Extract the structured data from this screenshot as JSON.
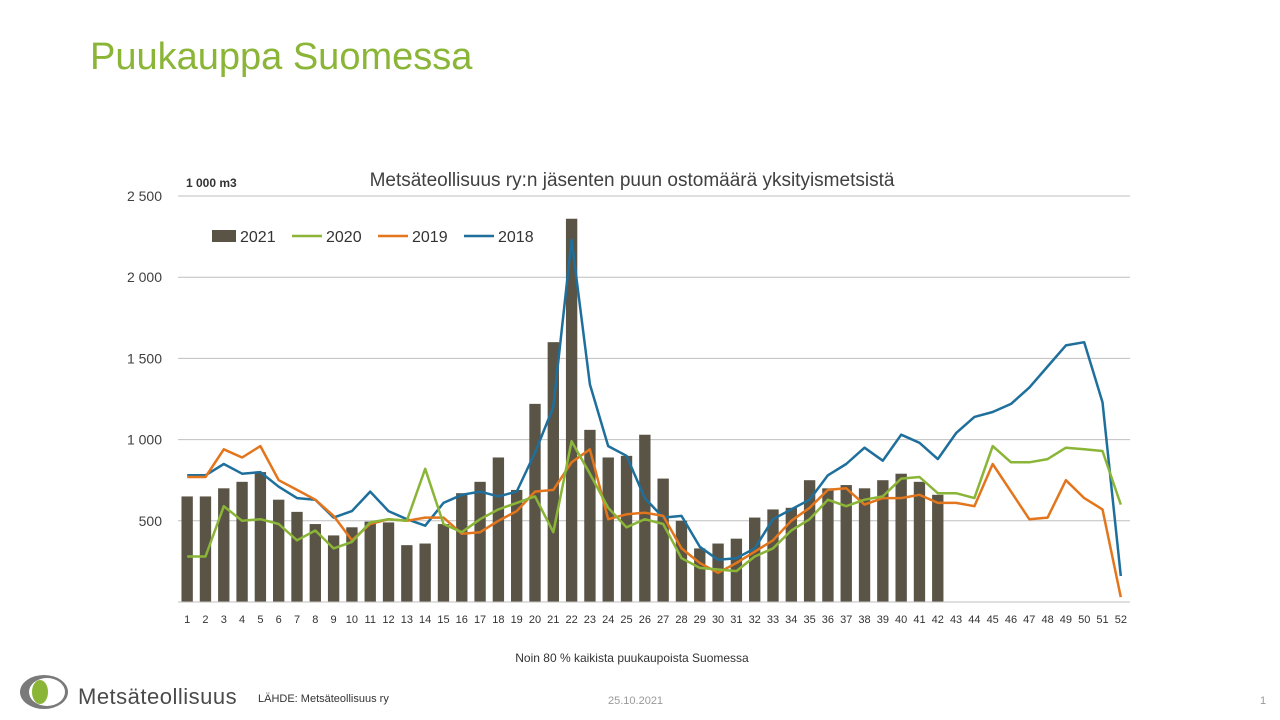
{
  "slide": {
    "title": "Puukauppa Suomessa",
    "source": "LÄHDE:  Metsäteollisuus ry",
    "date": "25.10.2021",
    "page_number": "1",
    "logo_text": "Metsäteollisuus"
  },
  "chart_data": {
    "type": "bar",
    "title": "Metsäteollisuus ry:n jäsenten puun ostomäärä yksityismetsistä",
    "unit_label": "1 000 m3",
    "xlabel": "Noin 80 % kaikista puukaupoista Suomessa",
    "ylim": [
      0,
      2500
    ],
    "yticks": [
      500,
      1000,
      1500,
      2000,
      2500
    ],
    "ytick_labels": [
      "500",
      "1 000",
      "1 500",
      "2 000",
      "2 500"
    ],
    "grid": true,
    "legend_position": "top-left",
    "categories": [
      "1",
      "2",
      "3",
      "4",
      "5",
      "6",
      "7",
      "8",
      "9",
      "10",
      "11",
      "12",
      "13",
      "14",
      "15",
      "16",
      "17",
      "18",
      "19",
      "20",
      "21",
      "22",
      "23",
      "24",
      "25",
      "26",
      "27",
      "28",
      "29",
      "30",
      "31",
      "32",
      "33",
      "34",
      "35",
      "36",
      "37",
      "38",
      "39",
      "40",
      "41",
      "42",
      "43",
      "44",
      "45",
      "46",
      "47",
      "48",
      "49",
      "50",
      "51",
      "52"
    ],
    "series": [
      {
        "name": "2021",
        "type": "bar",
        "color": "#595445",
        "values": [
          650,
          650,
          700,
          740,
          800,
          630,
          555,
          480,
          410,
          460,
          495,
          490,
          350,
          360,
          480,
          670,
          740,
          890,
          690,
          1220,
          1600,
          2360,
          1060,
          890,
          900,
          1030,
          760,
          500,
          330,
          360,
          390,
          520,
          570,
          580,
          750,
          700,
          720,
          700,
          750,
          790,
          740,
          660,
          null,
          null,
          null,
          null,
          null,
          null,
          null,
          null,
          null,
          null
        ]
      },
      {
        "name": "2020",
        "type": "line",
        "color": "#8ab537",
        "values": [
          280,
          280,
          590,
          500,
          510,
          480,
          380,
          440,
          330,
          370,
          490,
          510,
          500,
          820,
          480,
          430,
          510,
          570,
          610,
          650,
          430,
          990,
          790,
          580,
          460,
          510,
          480,
          270,
          210,
          200,
          190,
          280,
          330,
          440,
          510,
          630,
          590,
          630,
          650,
          760,
          770,
          670,
          670,
          640,
          960,
          860,
          860,
          880,
          950,
          940,
          930,
          600
        ]
      },
      {
        "name": "2019",
        "type": "line",
        "color": "#e3751c",
        "values": [
          770,
          770,
          940,
          890,
          960,
          750,
          690,
          630,
          530,
          380,
          480,
          510,
          500,
          520,
          520,
          420,
          430,
          500,
          560,
          680,
          690,
          860,
          940,
          510,
          540,
          550,
          530,
          330,
          240,
          180,
          240,
          310,
          380,
          500,
          580,
          690,
          700,
          600,
          640,
          640,
          660,
          610,
          610,
          590,
          850,
          680,
          510,
          520,
          750,
          640,
          570,
          30
        ]
      },
      {
        "name": "2018",
        "type": "line",
        "color": "#1e6f9c",
        "values": [
          780,
          780,
          850,
          790,
          800,
          710,
          640,
          630,
          520,
          560,
          680,
          560,
          510,
          470,
          610,
          660,
          680,
          650,
          680,
          920,
          1200,
          2230,
          1340,
          960,
          900,
          640,
          520,
          530,
          340,
          260,
          270,
          330,
          510,
          570,
          630,
          780,
          850,
          950,
          870,
          1030,
          980,
          880,
          1040,
          1140,
          1170,
          1220,
          1320,
          1450,
          1580,
          1600,
          1230,
          160
        ]
      }
    ]
  }
}
